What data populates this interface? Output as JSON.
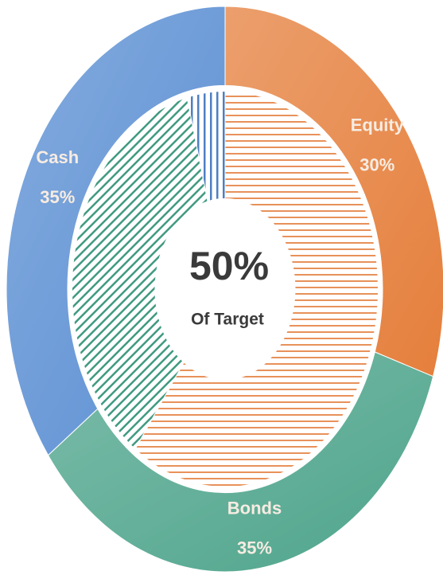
{
  "chart_data": {
    "type": "doughnut",
    "categories": [
      "Equity",
      "Bonds",
      "Cash"
    ],
    "series": [
      {
        "values": [
          30,
          35,
          35
        ],
        "value_labels": [
          "30%",
          "35%",
          "35%"
        ],
        "colors": [
          "#e57f3c",
          "#4fa58c",
          "#5b8fd3"
        ]
      },
      {
        "values": [
          60,
          36,
          4
        ],
        "colors": [
          "#e8915a",
          "#3f9a80",
          "#4f7fc4"
        ],
        "patterns": [
          "horizontal",
          "diagonal",
          "vertical"
        ]
      }
    ],
    "center_text": [
      "50%",
      "Of Target"
    ]
  }
}
